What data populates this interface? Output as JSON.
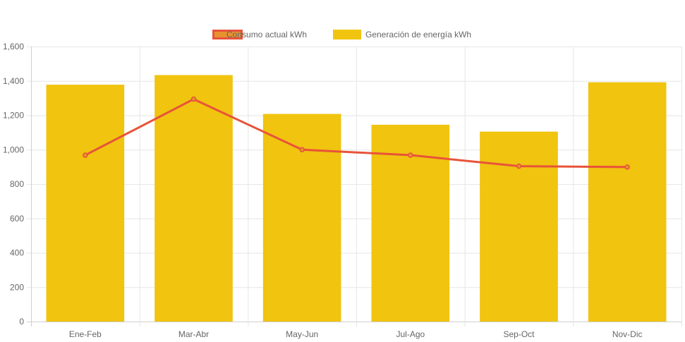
{
  "chart_data": {
    "type": "bar",
    "categories": [
      "Ene-Feb",
      "Mar-Abr",
      "May-Jun",
      "Jul-Ago",
      "Sep-Oct",
      "Nov-Dic"
    ],
    "series": [
      {
        "name": "Consumo actual kWh",
        "type": "line",
        "values": [
          968,
          1294,
          1000,
          968,
          904,
          899
        ],
        "color": "#e8533a",
        "legend_fill": "#e8912e"
      },
      {
        "name": "Generación de energía kWh",
        "type": "bar",
        "values": [
          1378,
          1434,
          1208,
          1145,
          1105,
          1392
        ],
        "color": "#f0c40f"
      }
    ],
    "ylim": [
      0,
      1600
    ],
    "yticks": [
      0,
      200,
      400,
      600,
      800,
      1000,
      1200,
      1400,
      1600
    ],
    "ytick_labels": [
      "0",
      "200",
      "400",
      "600",
      "800",
      "1,000",
      "1,200",
      "1,400",
      "1,600"
    ],
    "grid": true,
    "legend_position": "top-center",
    "title": "",
    "xlabel": "",
    "ylabel": ""
  }
}
